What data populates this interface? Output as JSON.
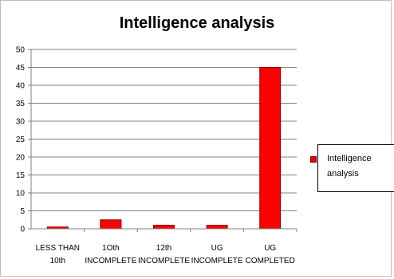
{
  "chart_data": {
    "type": "bar",
    "title": "Intelligence analysis",
    "categories": [
      [
        "LESS THAN",
        "10th"
      ],
      [
        "1Oth",
        "INCOMPLETE"
      ],
      [
        "12th",
        "INCOMPLETE"
      ],
      [
        "UG",
        "INCOMPLETE"
      ],
      [
        "UG",
        "COMPLETED"
      ]
    ],
    "series": [
      {
        "name": "Intelligence analysis",
        "values": [
          0.5,
          2.5,
          1,
          1,
          45
        ]
      }
    ],
    "ylim": [
      0,
      50
    ],
    "yticks": [
      0,
      5,
      10,
      15,
      20,
      25,
      30,
      35,
      40,
      45,
      50
    ],
    "grid": true,
    "legend_position": "right",
    "colors": {
      "bar_fill": "#ff0000",
      "bar_stroke": "#8b0000",
      "grid": "#808080"
    }
  }
}
